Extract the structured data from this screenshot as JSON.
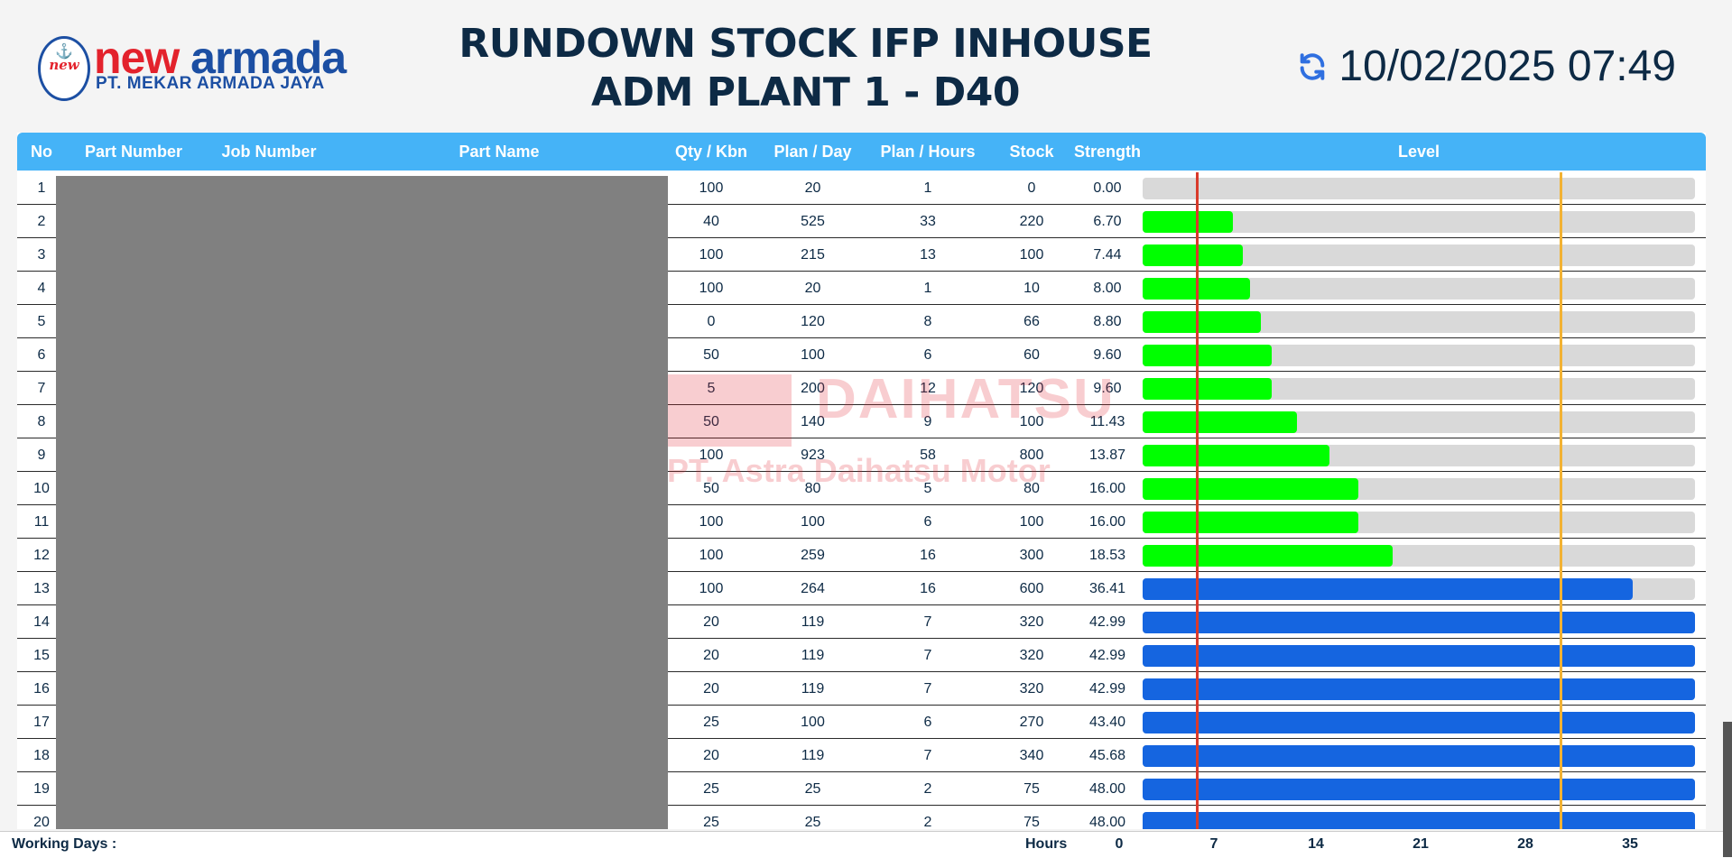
{
  "header": {
    "logo": {
      "emblem_text": "new",
      "brand_part1": "new",
      "brand_part2": "armada",
      "company": "PT. MEKAR ARMADA JAYA"
    },
    "title_line1": "RUNDOWN STOCK IFP INHOUSE",
    "title_line2": "ADM PLANT 1 - D40",
    "datetime": "10/02/2025 07:49",
    "refresh_icon": "refresh-icon"
  },
  "table": {
    "columns": [
      "No",
      "Part Number",
      "Job Number",
      "Part Name",
      "Qty / Kbn",
      "Plan / Day",
      "Plan / Hours",
      "Stock",
      "Strength",
      "Level"
    ],
    "rows": [
      {
        "no": "1",
        "qty": "100",
        "plan_day": "20",
        "plan_hours": "1",
        "stock": "0",
        "strength": "0.00",
        "level": 0.0,
        "status": "green"
      },
      {
        "no": "2",
        "qty": "40",
        "plan_day": "525",
        "plan_hours": "33",
        "stock": "220",
        "strength": "6.70",
        "level": 6.7,
        "status": "green"
      },
      {
        "no": "3",
        "qty": "100",
        "plan_day": "215",
        "plan_hours": "13",
        "stock": "100",
        "strength": "7.44",
        "level": 7.44,
        "status": "green"
      },
      {
        "no": "4",
        "qty": "100",
        "plan_day": "20",
        "plan_hours": "1",
        "stock": "10",
        "strength": "8.00",
        "level": 8.0,
        "status": "green"
      },
      {
        "no": "5",
        "qty": "0",
        "plan_day": "120",
        "plan_hours": "8",
        "stock": "66",
        "strength": "8.80",
        "level": 8.8,
        "status": "green"
      },
      {
        "no": "6",
        "qty": "50",
        "plan_day": "100",
        "plan_hours": "6",
        "stock": "60",
        "strength": "9.60",
        "level": 9.6,
        "status": "green"
      },
      {
        "no": "7",
        "qty": "5",
        "plan_day": "200",
        "plan_hours": "12",
        "stock": "120",
        "strength": "9.60",
        "level": 9.6,
        "status": "green"
      },
      {
        "no": "8",
        "qty": "50",
        "plan_day": "140",
        "plan_hours": "9",
        "stock": "100",
        "strength": "11.43",
        "level": 11.43,
        "status": "green"
      },
      {
        "no": "9",
        "qty": "100",
        "plan_day": "923",
        "plan_hours": "58",
        "stock": "800",
        "strength": "13.87",
        "level": 13.87,
        "status": "green"
      },
      {
        "no": "10",
        "qty": "50",
        "plan_day": "80",
        "plan_hours": "5",
        "stock": "80",
        "strength": "16.00",
        "level": 16.0,
        "status": "green"
      },
      {
        "no": "11",
        "qty": "100",
        "plan_day": "100",
        "plan_hours": "6",
        "stock": "100",
        "strength": "16.00",
        "level": 16.0,
        "status": "green"
      },
      {
        "no": "12",
        "qty": "100",
        "plan_day": "259",
        "plan_hours": "16",
        "stock": "300",
        "strength": "18.53",
        "level": 18.53,
        "status": "green"
      },
      {
        "no": "13",
        "qty": "100",
        "plan_day": "264",
        "plan_hours": "16",
        "stock": "600",
        "strength": "36.41",
        "level": 36.41,
        "status": "blue"
      },
      {
        "no": "14",
        "qty": "20",
        "plan_day": "119",
        "plan_hours": "7",
        "stock": "320",
        "strength": "42.99",
        "level": 42.99,
        "status": "blue"
      },
      {
        "no": "15",
        "qty": "20",
        "plan_day": "119",
        "plan_hours": "7",
        "stock": "320",
        "strength": "42.99",
        "level": 42.99,
        "status": "blue"
      },
      {
        "no": "16",
        "qty": "20",
        "plan_day": "119",
        "plan_hours": "7",
        "stock": "320",
        "strength": "42.99",
        "level": 42.99,
        "status": "blue"
      },
      {
        "no": "17",
        "qty": "25",
        "plan_day": "100",
        "plan_hours": "6",
        "stock": "270",
        "strength": "43.40",
        "level": 43.4,
        "status": "blue"
      },
      {
        "no": "18",
        "qty": "20",
        "plan_day": "119",
        "plan_hours": "7",
        "stock": "340",
        "strength": "45.68",
        "level": 45.68,
        "status": "blue"
      },
      {
        "no": "19",
        "qty": "25",
        "plan_day": "25",
        "plan_hours": "2",
        "stock": "75",
        "strength": "48.00",
        "level": 48.0,
        "status": "blue"
      },
      {
        "no": "20",
        "qty": "25",
        "plan_day": "25",
        "plan_hours": "2",
        "stock": "75",
        "strength": "48.00",
        "level": 48.0,
        "status": "blue"
      }
    ],
    "level_scale": {
      "min": 0,
      "max": 41
    },
    "markers": [
      {
        "name": "min-limit",
        "value": 4,
        "color": "#d93a2b"
      },
      {
        "name": "max-limit",
        "value": 31,
        "color": "#f2b234"
      }
    ],
    "colors": {
      "green": "#00ff00",
      "blue": "#1565e0",
      "track": "#d9d9d9",
      "header": "#45b3f7"
    }
  },
  "watermark": {
    "name": "DAIHATSU",
    "company": "PT. Astra Daihatsu Motor"
  },
  "footer": {
    "working_days_label": "Working Days :",
    "hours_label": "Hours",
    "hour_ticks": [
      "0",
      "7",
      "14",
      "21",
      "28",
      "35"
    ]
  }
}
